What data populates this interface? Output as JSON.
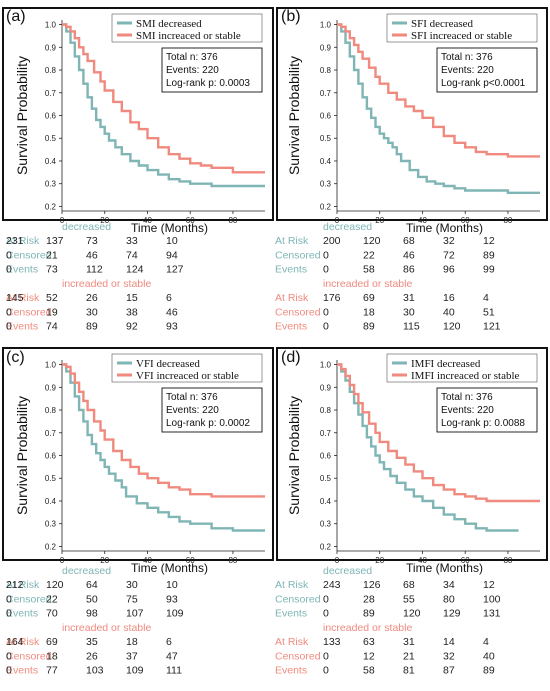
{
  "colors": {
    "decreased": "#7fb5b5",
    "increased": "#f08a7e"
  },
  "x_label": "Time (Months)",
  "y_label": "Survival Probability",
  "risk_labels": {
    "at_risk": "At Risk",
    "censored": "Censored",
    "events": "Events"
  },
  "chart_data": [
    {
      "type": "line",
      "panel": "(a)",
      "xlabel": "Time (Months)",
      "ylabel": "Survival Probability",
      "x_ticks": [
        "0",
        "20",
        "40",
        "60",
        "80"
      ],
      "y_ticks": [
        "0.2",
        "0.3",
        "0.4",
        "0.5",
        "0.6",
        "0.7",
        "0.8",
        "0.9",
        "1.0"
      ],
      "xlim": [
        0,
        95
      ],
      "ylim": [
        0.18,
        1.02
      ],
      "legend_position": "top-right",
      "stats": [
        "Total n: 376",
        "Events: 220",
        "Log-rank p: 0.0003"
      ],
      "series": [
        {
          "name": "SMI decreased",
          "color": "#7fb5b5",
          "x": [
            0,
            2,
            4,
            6,
            8,
            10,
            12,
            14,
            16,
            18,
            20,
            22,
            25,
            28,
            32,
            36,
            40,
            45,
            50,
            55,
            60,
            70,
            80,
            95
          ],
          "y": [
            1.0,
            0.97,
            0.92,
            0.86,
            0.8,
            0.74,
            0.68,
            0.63,
            0.58,
            0.55,
            0.52,
            0.49,
            0.46,
            0.43,
            0.4,
            0.38,
            0.36,
            0.34,
            0.32,
            0.31,
            0.3,
            0.29,
            0.29,
            0.29
          ]
        },
        {
          "name": "SMI increaced or stable",
          "color": "#f08a7e",
          "x": [
            0,
            2,
            4,
            6,
            8,
            10,
            12,
            15,
            18,
            20,
            24,
            28,
            32,
            36,
            40,
            45,
            50,
            55,
            60,
            65,
            70,
            80,
            95
          ],
          "y": [
            1.0,
            0.99,
            0.97,
            0.94,
            0.9,
            0.87,
            0.84,
            0.79,
            0.75,
            0.71,
            0.66,
            0.62,
            0.57,
            0.54,
            0.5,
            0.46,
            0.43,
            0.41,
            0.39,
            0.38,
            0.37,
            0.35,
            0.35
          ]
        }
      ],
      "risk_tables": [
        {
          "group": "decreased",
          "at_risk": [
            "231",
            "137",
            "73",
            "33",
            "10"
          ],
          "censored": [
            "0",
            "21",
            "46",
            "74",
            "94"
          ],
          "events": [
            "0",
            "73",
            "112",
            "124",
            "127"
          ]
        },
        {
          "group": "increaded or stable",
          "at_risk": [
            "145",
            "52",
            "26",
            "15",
            "6"
          ],
          "censored": [
            "0",
            "19",
            "30",
            "38",
            "46"
          ],
          "events": [
            "0",
            "74",
            "89",
            "92",
            "93"
          ]
        }
      ]
    },
    {
      "type": "line",
      "panel": "(b)",
      "xlabel": "Time (Months)",
      "ylabel": "Survival Probability",
      "x_ticks": [
        "0",
        "20",
        "40",
        "60",
        "80"
      ],
      "y_ticks": [
        "0.2",
        "0.3",
        "0.4",
        "0.5",
        "0.6",
        "0.7",
        "0.8",
        "0.9",
        "1.0"
      ],
      "xlim": [
        0,
        95
      ],
      "ylim": [
        0.18,
        1.02
      ],
      "legend_position": "top-right",
      "stats": [
        "Total n: 376",
        "Events: 220",
        "Log-rank p<0.0001"
      ],
      "series": [
        {
          "name": "SFI decreased",
          "color": "#7fb5b5",
          "x": [
            0,
            2,
            4,
            6,
            8,
            10,
            12,
            14,
            16,
            18,
            20,
            22,
            24,
            26,
            28,
            30,
            34,
            38,
            42,
            46,
            50,
            55,
            60,
            70,
            80,
            95
          ],
          "y": [
            1.0,
            0.97,
            0.92,
            0.86,
            0.8,
            0.74,
            0.68,
            0.63,
            0.59,
            0.55,
            0.52,
            0.5,
            0.48,
            0.46,
            0.43,
            0.4,
            0.36,
            0.33,
            0.31,
            0.3,
            0.29,
            0.28,
            0.27,
            0.27,
            0.26,
            0.26
          ]
        },
        {
          "name": "SFI increaced or stable",
          "color": "#f08a7e",
          "x": [
            0,
            2,
            4,
            6,
            8,
            10,
            12,
            15,
            18,
            20,
            24,
            28,
            32,
            36,
            40,
            45,
            50,
            55,
            60,
            65,
            70,
            80,
            95
          ],
          "y": [
            1.0,
            0.99,
            0.97,
            0.94,
            0.91,
            0.88,
            0.85,
            0.81,
            0.77,
            0.74,
            0.7,
            0.67,
            0.64,
            0.62,
            0.59,
            0.55,
            0.51,
            0.48,
            0.46,
            0.44,
            0.43,
            0.42,
            0.42
          ]
        }
      ],
      "risk_tables": [
        {
          "group": "decreased",
          "at_risk": [
            "200",
            "120",
            "68",
            "32",
            "12"
          ],
          "censored": [
            "0",
            "22",
            "46",
            "72",
            "89"
          ],
          "events": [
            "0",
            "58",
            "86",
            "96",
            "99"
          ]
        },
        {
          "group": "increaded or stable",
          "at_risk": [
            "176",
            "69",
            "31",
            "16",
            "4"
          ],
          "censored": [
            "0",
            "18",
            "30",
            "40",
            "51"
          ],
          "events": [
            "0",
            "89",
            "115",
            "120",
            "121"
          ]
        }
      ]
    },
    {
      "type": "line",
      "panel": "(c)",
      "xlabel": "Time (Months)",
      "ylabel": "Survival Probability",
      "x_ticks": [
        "0",
        "20",
        "40",
        "60",
        "80"
      ],
      "y_ticks": [
        "0.2",
        "0.3",
        "0.4",
        "0.5",
        "0.6",
        "0.7",
        "0.8",
        "0.9",
        "1.0"
      ],
      "xlim": [
        0,
        95
      ],
      "ylim": [
        0.18,
        1.02
      ],
      "legend_position": "top-right",
      "stats": [
        "Total n: 376",
        "Events: 220",
        "Log-rank p: 0.0002"
      ],
      "series": [
        {
          "name": "VFI decreased",
          "color": "#7fb5b5",
          "x": [
            0,
            2,
            4,
            6,
            8,
            10,
            12,
            14,
            16,
            18,
            20,
            22,
            25,
            28,
            30,
            35,
            40,
            45,
            50,
            55,
            60,
            70,
            80,
            95
          ],
          "y": [
            1.0,
            0.97,
            0.92,
            0.86,
            0.8,
            0.75,
            0.69,
            0.65,
            0.61,
            0.58,
            0.55,
            0.52,
            0.49,
            0.46,
            0.42,
            0.39,
            0.37,
            0.35,
            0.33,
            0.31,
            0.3,
            0.28,
            0.27,
            0.27
          ]
        },
        {
          "name": "VFI increaced or stable",
          "color": "#f08a7e",
          "x": [
            0,
            2,
            4,
            6,
            8,
            10,
            12,
            15,
            18,
            20,
            24,
            28,
            32,
            36,
            40,
            45,
            50,
            55,
            60,
            70,
            80,
            95
          ],
          "y": [
            1.0,
            0.99,
            0.96,
            0.92,
            0.88,
            0.84,
            0.8,
            0.75,
            0.71,
            0.67,
            0.62,
            0.58,
            0.55,
            0.52,
            0.5,
            0.48,
            0.46,
            0.45,
            0.43,
            0.42,
            0.42,
            0.42
          ]
        }
      ],
      "risk_tables": [
        {
          "group": "decreased",
          "at_risk": [
            "212",
            "120",
            "64",
            "30",
            "10"
          ],
          "censored": [
            "0",
            "22",
            "50",
            "75",
            "93"
          ],
          "events": [
            "0",
            "70",
            "98",
            "107",
            "109"
          ]
        },
        {
          "group": "increaded or stable",
          "at_risk": [
            "164",
            "69",
            "35",
            "18",
            "6"
          ],
          "censored": [
            "0",
            "18",
            "26",
            "37",
            "47"
          ],
          "events": [
            "0",
            "77",
            "103",
            "109",
            "111"
          ]
        }
      ]
    },
    {
      "type": "line",
      "panel": "(d)",
      "xlabel": "Time (Months)",
      "ylabel": "Survival Probability",
      "x_ticks": [
        "0",
        "20",
        "40",
        "60",
        "80"
      ],
      "y_ticks": [
        "0.2",
        "0.3",
        "0.4",
        "0.5",
        "0.6",
        "0.7",
        "0.8",
        "0.9",
        "1.0"
      ],
      "xlim": [
        0,
        95
      ],
      "ylim": [
        0.18,
        1.02
      ],
      "legend_position": "top-right",
      "stats": [
        "Total n: 376",
        "Events: 220",
        "Log-rank p: 0.0088"
      ],
      "series": [
        {
          "name": "IMFI decreased",
          "color": "#7fb5b5",
          "x": [
            0,
            2,
            4,
            6,
            8,
            10,
            12,
            14,
            16,
            18,
            20,
            22,
            25,
            28,
            32,
            36,
            40,
            45,
            50,
            55,
            60,
            65,
            70,
            85
          ],
          "y": [
            1.0,
            0.97,
            0.93,
            0.88,
            0.83,
            0.78,
            0.73,
            0.68,
            0.64,
            0.6,
            0.57,
            0.54,
            0.51,
            0.48,
            0.45,
            0.42,
            0.4,
            0.37,
            0.34,
            0.32,
            0.3,
            0.28,
            0.27,
            0.27
          ]
        },
        {
          "name": "IMFI increaced or stable",
          "color": "#f08a7e",
          "x": [
            0,
            2,
            4,
            6,
            8,
            10,
            12,
            15,
            18,
            20,
            24,
            28,
            32,
            36,
            40,
            45,
            50,
            55,
            60,
            65,
            70,
            80,
            95
          ],
          "y": [
            1.0,
            0.98,
            0.95,
            0.91,
            0.87,
            0.83,
            0.79,
            0.74,
            0.7,
            0.66,
            0.62,
            0.59,
            0.56,
            0.53,
            0.5,
            0.47,
            0.45,
            0.43,
            0.42,
            0.41,
            0.4,
            0.4,
            0.4
          ]
        }
      ],
      "risk_tables": [
        {
          "group": "decreased",
          "at_risk": [
            "243",
            "126",
            "68",
            "34",
            "12"
          ],
          "censored": [
            "0",
            "28",
            "55",
            "80",
            "100"
          ],
          "events": [
            "0",
            "89",
            "120",
            "129",
            "131"
          ]
        },
        {
          "group": "increaded or stable",
          "at_risk": [
            "133",
            "63",
            "31",
            "14",
            "4"
          ],
          "censored": [
            "0",
            "12",
            "21",
            "32",
            "40"
          ],
          "events": [
            "0",
            "58",
            "81",
            "87",
            "89"
          ]
        }
      ]
    }
  ]
}
